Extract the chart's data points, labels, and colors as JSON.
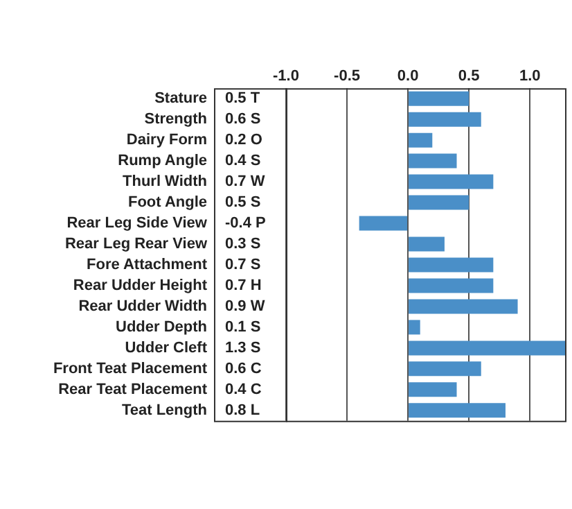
{
  "chart_data": {
    "type": "bar",
    "orientation": "horizontal",
    "categories": [
      "Stature",
      "Strength",
      "Dairy Form",
      "Rump Angle",
      "Thurl Width",
      "Foot Angle",
      "Rear Leg Side View",
      "Rear Leg Rear View",
      "Fore Attachment",
      "Rear Udder Height",
      "Rear Udder Width",
      "Udder Depth",
      "Udder Cleft",
      "Front Teat Placement",
      "Rear Teat Placement",
      "Teat Length"
    ],
    "values": [
      0.5,
      0.6,
      0.2,
      0.4,
      0.7,
      0.5,
      -0.4,
      0.3,
      0.7,
      0.7,
      0.9,
      0.1,
      1.3,
      0.6,
      0.4,
      0.8
    ],
    "value_labels": [
      "0.5 T",
      "0.6 S",
      "0.2 O",
      "0.4 S",
      "0.7 W",
      "0.5 S",
      "-0.4 P",
      "0.3 S",
      "0.7 S",
      "0.7 H",
      "0.9 W",
      "0.1 S",
      "1.3 S",
      "0.6 C",
      "0.4 C",
      "0.8 L"
    ],
    "color": "#4a8fc8",
    "xlim": [
      -1.0,
      1.3
    ],
    "xticks": [
      {
        "value": -1.0,
        "label": "-1.0"
      },
      {
        "value": -0.5,
        "label": "-0.5"
      },
      {
        "value": 0,
        "label": "0.0"
      },
      {
        "value": 0.5,
        "label": "0.5"
      },
      {
        "value": 1.0,
        "label": "1.0"
      }
    ],
    "grid": "x",
    "legend": false
  }
}
